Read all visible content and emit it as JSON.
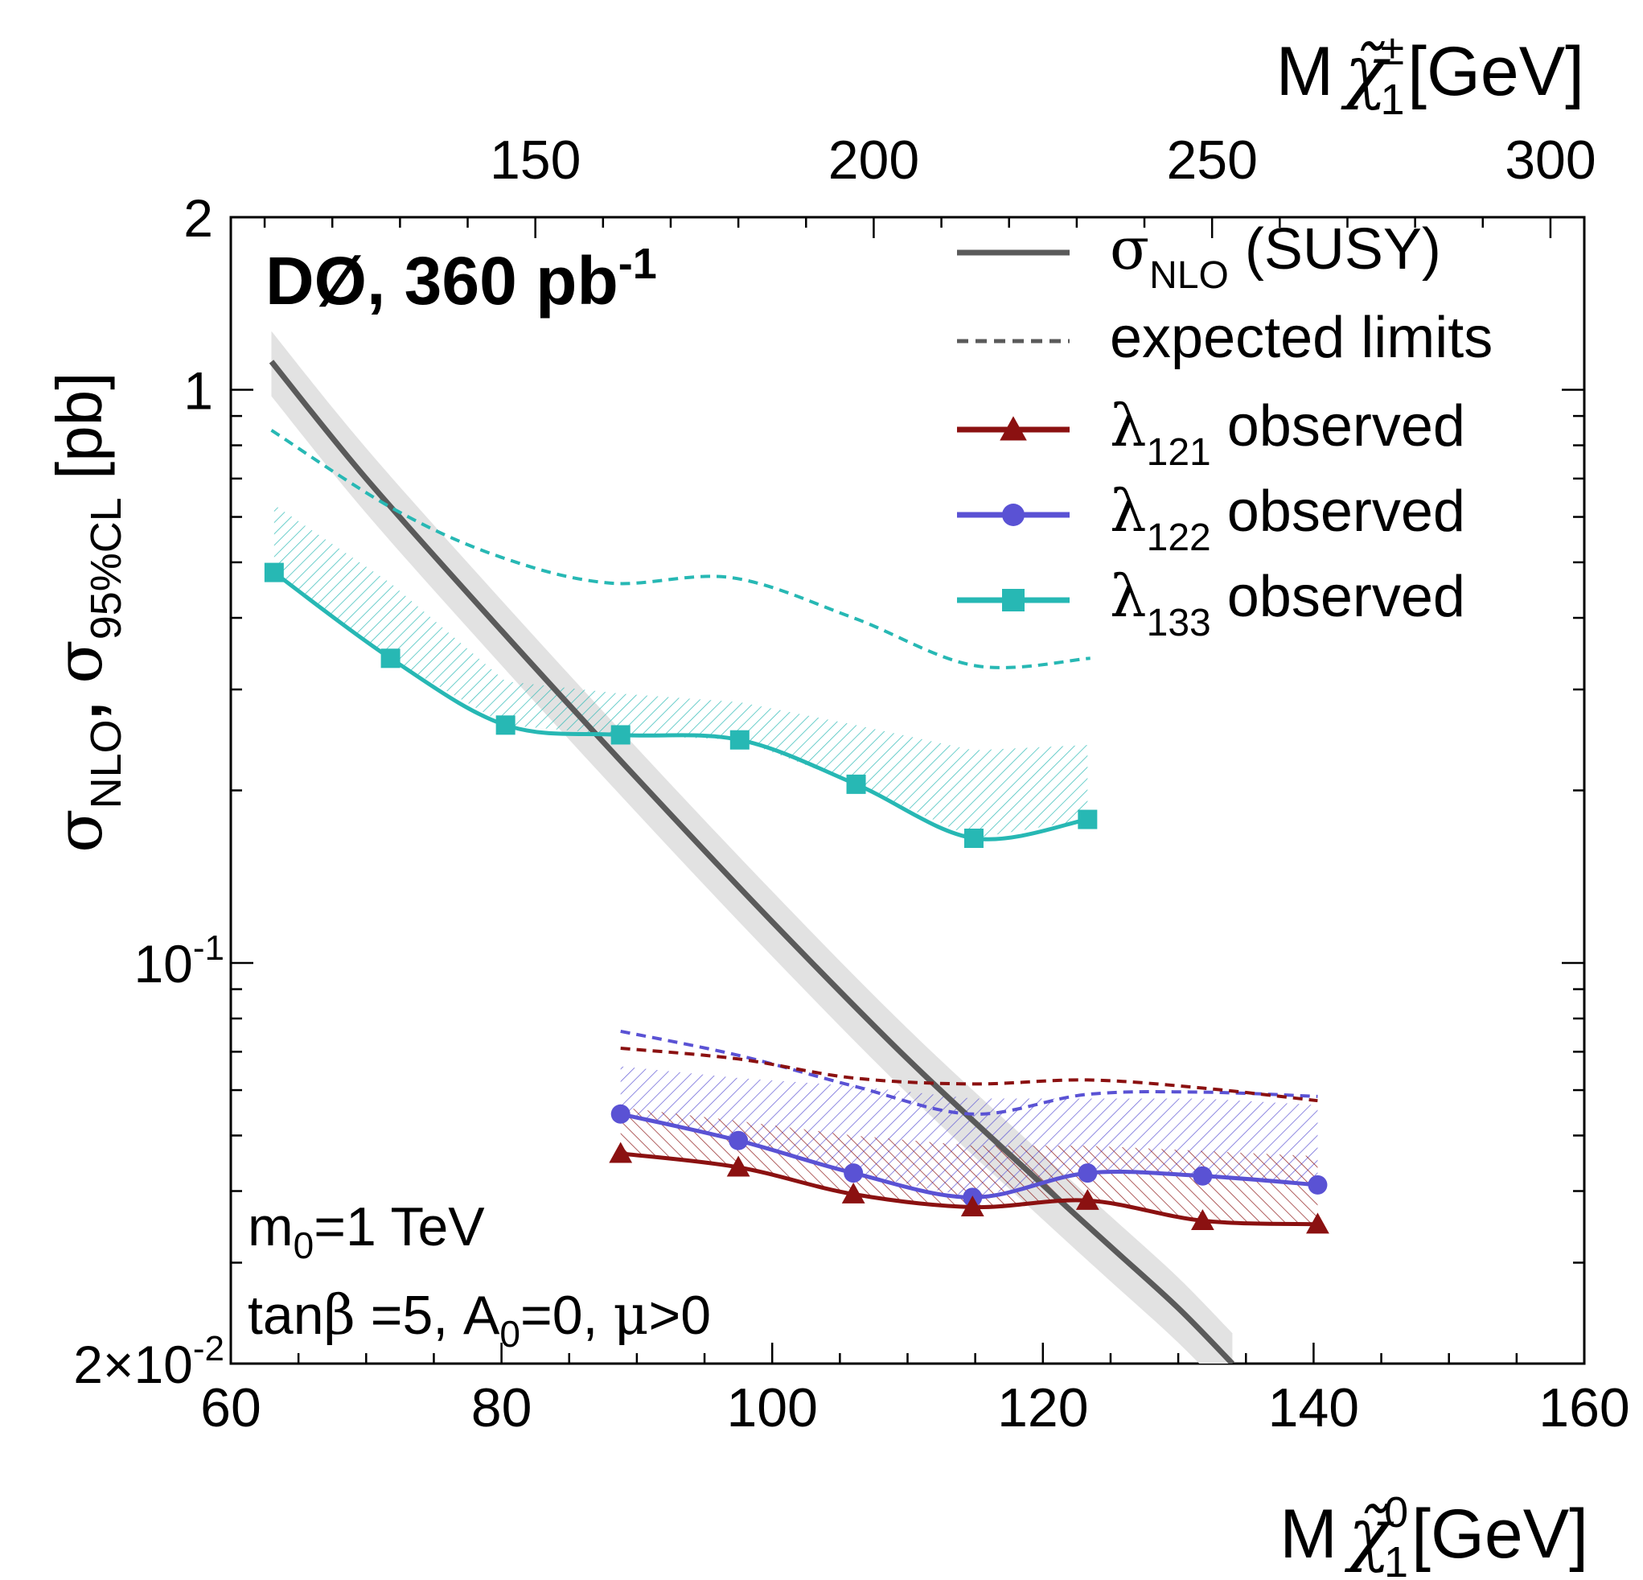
{
  "chart_data": {
    "type": "line",
    "experiment_label": "DØ, 360 pb",
    "luminosity_exponent": "-1",
    "parameters": {
      "line1": {
        "m": "m",
        "sub": "0",
        "rest": "=1 TeV"
      },
      "line2": {
        "tan": "tan",
        "beta": "β",
        "rest": " =5,  A",
        "a_sub": "0",
        "rest2": "=0,  ",
        "mu": "μ",
        "rest3": ">0"
      }
    },
    "x_axis": {
      "label_prefix": "M",
      "label_symbol": "χ̃",
      "label_sub": "1",
      "label_sup": "0",
      "label_unit": "[GeV]",
      "range": [
        60,
        160
      ],
      "ticks": [
        "60",
        "80",
        "100",
        "120",
        "140",
        "160"
      ]
    },
    "top_axis": {
      "label_prefix": "M",
      "label_symbol": "χ̃",
      "label_sub": "1",
      "label_sup": "±",
      "label_unit": "[GeV]",
      "ticks": [
        {
          "label": "150",
          "value": 150
        },
        {
          "label": "200",
          "value": 200
        },
        {
          "label": "250",
          "value": 250
        },
        {
          "label": "300",
          "value": 300
        }
      ]
    },
    "y_axis": {
      "label": {
        "s1": "σ",
        "s1sub": "NLO",
        "comma": ", ",
        "s2": "σ",
        "s2sub": "95%CL",
        "unit": " [pb]"
      },
      "scale": "log",
      "range": [
        0.02,
        2
      ],
      "ticks": [
        {
          "value": 2,
          "base": "2",
          "exp": ""
        },
        {
          "value": 1,
          "base": "1",
          "exp": ""
        },
        {
          "value": 0.1,
          "base": "10",
          "exp": "-1"
        },
        {
          "value": 0.02,
          "base": "2×10",
          "exp": "-2"
        }
      ]
    },
    "legend": {
      "position": "top-right",
      "entries": [
        {
          "sym": "σ",
          "sub": "NLO",
          "text": " (SUSY)",
          "color": "#5a5a5a",
          "style": "solid",
          "marker": "none"
        },
        {
          "sym": "",
          "sub": "",
          "text": "expected limits",
          "color": "#5a5a5a",
          "style": "dashed",
          "marker": "none"
        },
        {
          "sym": "λ",
          "sub": "121",
          "text": " observed",
          "color": "#8b1111",
          "style": "solid",
          "marker": "triangle"
        },
        {
          "sym": "λ",
          "sub": "122",
          "text": " observed",
          "color": "#5a52d4",
          "style": "solid",
          "marker": "circle"
        },
        {
          "sym": "λ",
          "sub": "133",
          "text": " observed",
          "color": "#27b8b4",
          "style": "solid",
          "marker": "square"
        }
      ]
    },
    "theory": {
      "name": "σNLO (SUSY)",
      "color": "#5a5a5a",
      "band_color": "#e2e2e2",
      "x": [
        63,
        70,
        80,
        90,
        100,
        110,
        120,
        125,
        130,
        134
      ],
      "y": [
        1.12,
        0.7,
        0.38,
        0.21,
        0.118,
        0.068,
        0.041,
        0.032,
        0.025,
        0.02
      ],
      "band_rel": 0.13
    },
    "series": [
      {
        "name": "λ133 observed",
        "color": "#27b8b4",
        "marker": "square",
        "x": [
          63.2,
          71.8,
          80.3,
          88.8,
          97.6,
          106.2,
          114.9,
          123.3
        ],
        "y": [
          0.48,
          0.34,
          0.26,
          0.25,
          0.245,
          0.205,
          0.165,
          0.178
        ],
        "expected_x": [
          63,
          72,
          80,
          88,
          97,
          106,
          115,
          123.5
        ],
        "expected_y": [
          0.85,
          0.62,
          0.51,
          0.46,
          0.47,
          0.4,
          0.33,
          0.34
        ],
        "band_top": [
          0.63,
          0.46,
          0.31,
          0.295,
          0.285,
          0.26,
          0.235,
          0.24
        ]
      },
      {
        "name": "λ122 observed",
        "color": "#5a52d4",
        "marker": "circle",
        "x": [
          88.8,
          97.5,
          106,
          114.8,
          123.3,
          131.8,
          140.3
        ],
        "y": [
          0.0545,
          0.049,
          0.043,
          0.039,
          0.043,
          0.0425,
          0.041
        ],
        "expected_x": [
          88.8,
          97.5,
          106,
          114.8,
          123.3,
          131.8,
          140.3
        ],
        "expected_y": [
          0.076,
          0.069,
          0.061,
          0.0545,
          0.059,
          0.0595,
          0.0585
        ],
        "band_top": [
          0.066,
          0.063,
          0.061,
          0.058,
          0.058,
          0.058,
          0.0565
        ]
      },
      {
        "name": "λ121 observed",
        "color": "#8b1111",
        "marker": "triangle",
        "x": [
          88.8,
          97.5,
          106,
          114.8,
          123.3,
          131.8,
          140.3
        ],
        "y": [
          0.0465,
          0.044,
          0.0395,
          0.0375,
          0.0385,
          0.0355,
          0.035
        ],
        "expected_x": [
          88.8,
          97.5,
          106,
          114.8,
          123.3,
          131.8,
          140.3
        ],
        "expected_y": [
          0.071,
          0.068,
          0.063,
          0.0615,
          0.0625,
          0.0605,
          0.0575
        ],
        "band_top": [
          0.056,
          0.053,
          0.05,
          0.048,
          0.048,
          0.047,
          0.046
        ]
      }
    ]
  }
}
